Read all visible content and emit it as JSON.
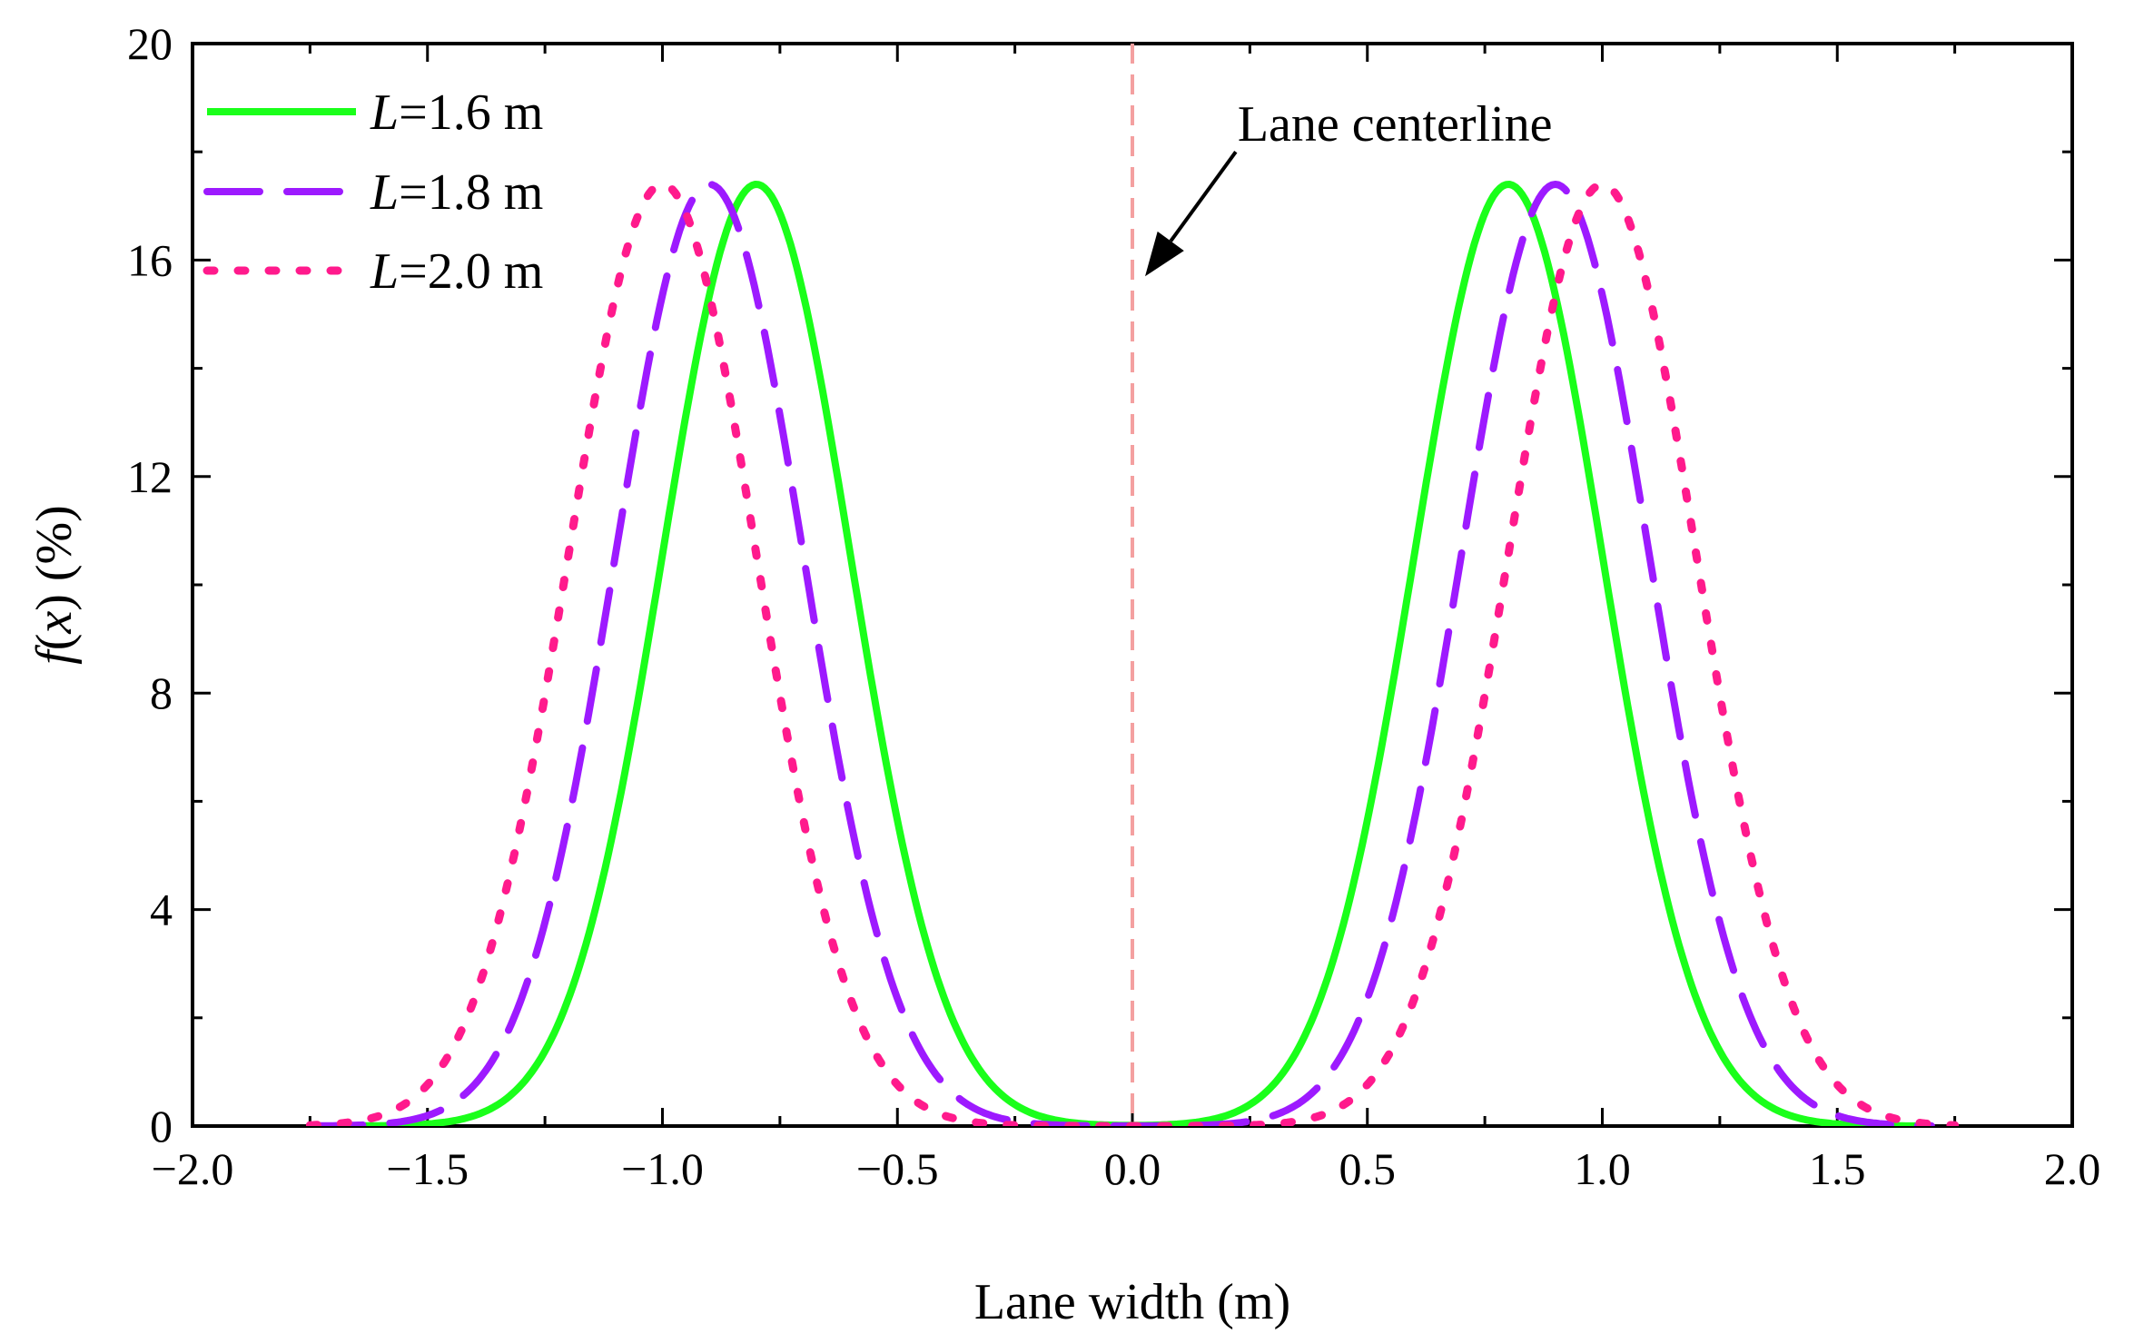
{
  "chart_data": {
    "type": "line",
    "title": "",
    "xlabel": "Lane width (m)",
    "ylabel": "f(x) (%)",
    "ylabel_parts": {
      "func": "f",
      "open": "(",
      "var": "x",
      "close": ")",
      "unit": " (%)"
    },
    "xlim": [
      -2.0,
      2.0
    ],
    "ylim": [
      0,
      20
    ],
    "x_ticks": [
      -2.0,
      -1.5,
      -1.0,
      -0.5,
      0.0,
      0.5,
      1.0,
      1.5,
      2.0
    ],
    "x_tick_labels": [
      "−2.0",
      "−1.5",
      "−1.0",
      "−0.5",
      "0.0",
      "0.5",
      "1.0",
      "1.5",
      "2.0"
    ],
    "y_ticks": [
      0,
      4,
      8,
      12,
      16,
      20
    ],
    "y_tick_labels": [
      "0",
      "4",
      "8",
      "12",
      "16",
      "20"
    ],
    "x_minor_ticks": [
      -1.75,
      -1.25,
      -0.75,
      -0.25,
      0.25,
      0.75,
      1.25,
      1.75
    ],
    "y_minor_ticks": [
      2,
      6,
      10,
      14,
      18
    ],
    "grid": false,
    "legend_position": "top-left",
    "series": [
      {
        "name": "L=1.6 m",
        "label_var": "L",
        "label_rest": "=1.6 m",
        "color": "#1aff1a",
        "style": "solid",
        "peak": 17.4,
        "center": 0.8,
        "sigma": 0.2,
        "x_range": [
          -1.7,
          1.7
        ]
      },
      {
        "name": "L=1.8 m",
        "label_var": "L",
        "label_rest": "=1.8 m",
        "color": "#9d1aff",
        "style": "dashed",
        "peak": 17.4,
        "center": 0.9,
        "sigma": 0.2,
        "x_range": [
          -1.75,
          1.7
        ]
      },
      {
        "name": "L=2.0 m",
        "label_var": "L",
        "label_rest": "=2.0 m",
        "color": "#ff1a8c",
        "style": "dotted",
        "peak": 17.4,
        "center": 1.0,
        "sigma": 0.2,
        "x_range": [
          -1.75,
          1.75
        ]
      }
    ],
    "reference_line": {
      "x": 0.0,
      "color": "#f4a0a0",
      "style": "dashed"
    },
    "annotation": {
      "text": "Lane centerline",
      "arrow_tip": [
        0.0,
        15.7
      ],
      "arrow_tail": [
        0.22,
        18.0
      ]
    }
  }
}
